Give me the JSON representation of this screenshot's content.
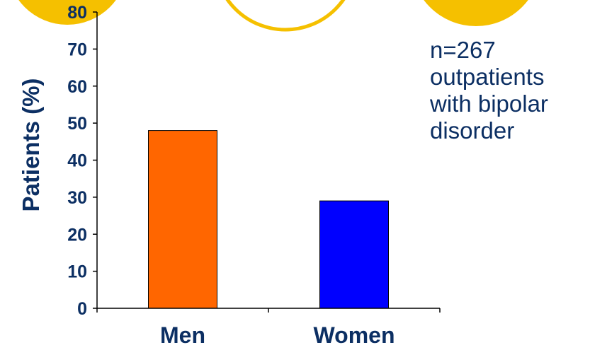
{
  "chart_data": {
    "type": "bar",
    "categories": [
      "Men",
      "Women"
    ],
    "values": [
      48,
      29
    ],
    "ylabel": "Patients (%)",
    "xlabel": "",
    "ylim": [
      0,
      80
    ],
    "yticks": [
      0,
      10,
      20,
      30,
      40,
      50,
      60,
      70,
      80
    ],
    "bar_colors": [
      "#ff6600",
      "#0000ff"
    ],
    "grid": false
  },
  "annotation": {
    "lines": [
      "n=267",
      "outpatients",
      "with bipolar",
      "disorder"
    ]
  },
  "colors": {
    "text": "#0c2f63",
    "decor_circle": "#f5c000",
    "axis": "#000000"
  }
}
